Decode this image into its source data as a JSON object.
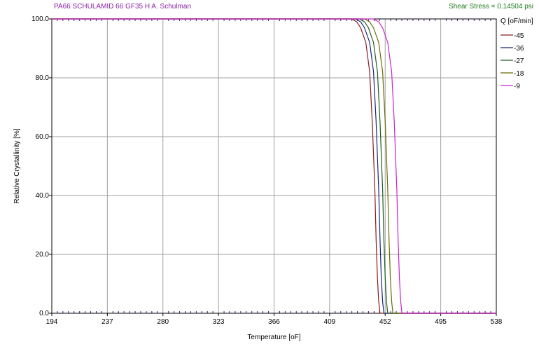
{
  "header": {
    "material": "PA66    SCHULAMID 66 GF35 H    A. Schulman",
    "shear_stress": "Shear Stress = 0.14504 psi"
  },
  "colors": {
    "header_material": "#8a1fa6",
    "header_stress": "#1e7a1e",
    "grid": "#a0a0a0",
    "axis": "#000000",
    "ticks": "#4a148c"
  },
  "chart_data": {
    "type": "line",
    "title": "",
    "xlabel": "Temperature [oF]",
    "ylabel": "Relative Crystallinity [%]",
    "xlim": [
      194,
      538
    ],
    "ylim": [
      0,
      100
    ],
    "x_ticks": [
      194,
      237,
      280,
      323,
      366,
      409,
      452,
      495,
      538
    ],
    "x_tick_labels": [
      "194",
      "237",
      "280",
      "323",
      "366",
      "409",
      "452",
      "495",
      "538"
    ],
    "y_ticks": [
      0,
      20,
      40,
      60,
      80,
      100
    ],
    "y_tick_labels": [
      "0.0",
      "20.0",
      "40.0",
      "60.0",
      "80.0",
      "100.0"
    ],
    "grid": true,
    "legend": {
      "title": "Q [oF/min]",
      "placement": "right"
    },
    "series": [
      {
        "name": "-45",
        "color": "#8b1a1a",
        "x": [
          194,
          426,
          430,
          433,
          437,
          440,
          442,
          444,
          445,
          446,
          447,
          448,
          538
        ],
        "y": [
          100,
          100,
          99,
          97,
          92,
          82,
          65,
          42,
          25,
          12,
          4,
          0,
          0
        ]
      },
      {
        "name": "-36",
        "color": "#1a237e",
        "x": [
          194,
          429,
          433,
          436,
          440,
          443,
          445,
          447,
          448,
          449,
          450,
          451,
          538
        ],
        "y": [
          100,
          100,
          99,
          97,
          92,
          82,
          65,
          42,
          25,
          12,
          4,
          0,
          0
        ]
      },
      {
        "name": "-27",
        "color": "#1b5e20",
        "x": [
          194,
          432,
          436,
          439,
          443,
          446,
          448,
          450,
          451,
          452,
          453,
          454,
          538
        ],
        "y": [
          100,
          100,
          99,
          97,
          92,
          82,
          65,
          42,
          25,
          12,
          4,
          0,
          0
        ]
      },
      {
        "name": "-18",
        "color": "#6b6b00",
        "x": [
          194,
          436,
          440,
          443,
          447,
          450,
          452,
          454,
          455,
          456,
          457,
          458,
          538
        ],
        "y": [
          100,
          100,
          99,
          97,
          92,
          82,
          65,
          42,
          25,
          12,
          4,
          0,
          0
        ]
      },
      {
        "name": "-9",
        "color": "#cc22cc",
        "x": [
          194,
          443,
          447,
          450,
          454,
          457,
          459,
          461,
          462,
          463,
          464,
          465,
          538
        ],
        "y": [
          100,
          100,
          99,
          97,
          92,
          82,
          65,
          42,
          25,
          12,
          4,
          0,
          0
        ]
      }
    ]
  }
}
